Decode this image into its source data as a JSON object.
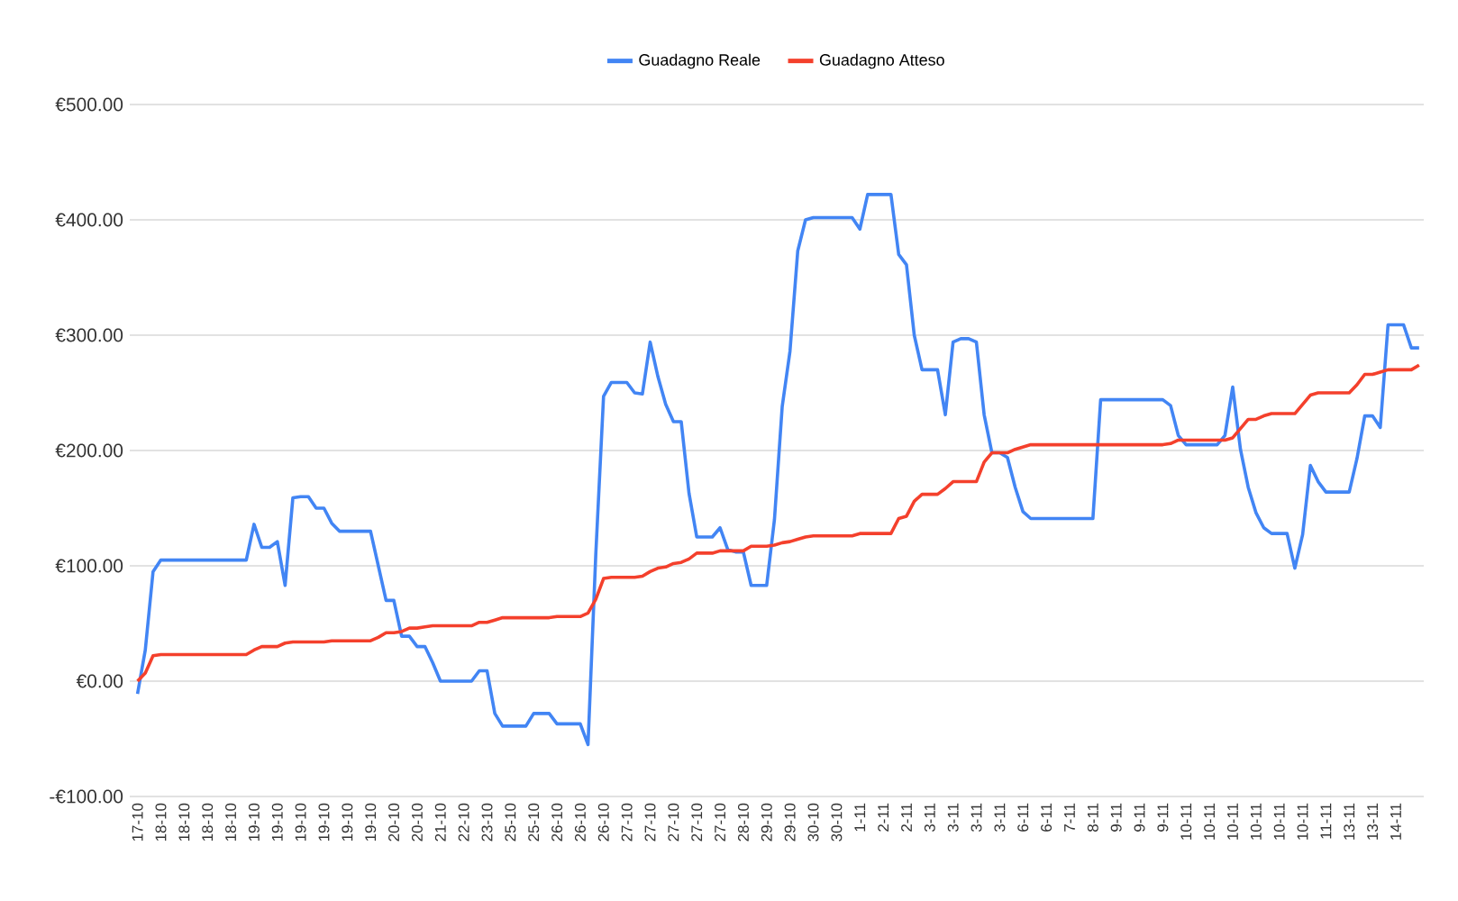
{
  "chart_data": {
    "type": "line",
    "categories": [
      "17-10",
      null,
      null,
      "18-10",
      null,
      null,
      "18-10",
      null,
      null,
      "18-10",
      null,
      null,
      "18-10",
      null,
      null,
      "19-10",
      null,
      null,
      "19-10",
      null,
      null,
      "19-10",
      null,
      null,
      "19-10",
      null,
      null,
      "19-10",
      null,
      null,
      "19-10",
      null,
      null,
      "20-10",
      null,
      null,
      "20-10",
      null,
      null,
      "21-10",
      null,
      null,
      "22-10",
      null,
      null,
      "23-10",
      null,
      null,
      "25-10",
      null,
      null,
      "25-10",
      null,
      null,
      "26-10",
      null,
      null,
      "26-10",
      null,
      null,
      "26-10",
      null,
      null,
      "27-10",
      null,
      null,
      "27-10",
      null,
      null,
      "27-10",
      null,
      null,
      "27-10",
      null,
      null,
      "27-10",
      null,
      null,
      "28-10",
      null,
      null,
      "29-10",
      null,
      null,
      "29-10",
      null,
      null,
      "30-10",
      null,
      null,
      "30-10",
      null,
      null,
      "1-11",
      null,
      null,
      "2-11",
      null,
      null,
      "2-11",
      null,
      null,
      "3-11",
      null,
      null,
      "3-11",
      null,
      null,
      "3-11",
      null,
      null,
      "3-11",
      null,
      null,
      "6-11",
      null,
      null,
      "6-11",
      null,
      null,
      "7-11",
      null,
      null,
      "8-11",
      null,
      null,
      "9-11",
      null,
      null,
      "9-11",
      null,
      null,
      "9-11",
      null,
      null,
      "10-11",
      null,
      null,
      "10-11",
      null,
      null,
      "10-11",
      null,
      null,
      "10-11",
      null,
      null,
      "10-11",
      null,
      null,
      "10-11",
      null,
      null,
      "11-11",
      null,
      null,
      "13-11",
      null,
      null,
      "13-11",
      null,
      null,
      "14-11",
      null,
      null,
      null
    ],
    "ylim": [
      -100,
      500
    ],
    "yticks": [
      {
        "value": -100,
        "label": "-€100.00"
      },
      {
        "value": 0,
        "label": "€0.00"
      },
      {
        "value": 100,
        "label": "€100.00"
      },
      {
        "value": 200,
        "label": "€200.00"
      },
      {
        "value": 300,
        "label": "€300.00"
      },
      {
        "value": 400,
        "label": "€400.00"
      },
      {
        "value": 500,
        "label": "€500.00"
      }
    ],
    "grid": "y",
    "legend": "top",
    "series": [
      {
        "name": "Guadagno Reale",
        "color": "#4285f4",
        "values": [
          -11,
          27,
          95,
          105,
          105,
          105,
          105,
          105,
          105,
          105,
          105,
          105,
          105,
          105,
          105,
          136,
          116,
          116,
          121,
          83,
          159,
          160,
          160,
          150,
          150,
          137,
          130,
          130,
          130,
          130,
          130,
          100,
          70,
          70,
          39,
          39,
          30,
          30,
          16,
          0,
          0,
          0,
          0,
          0,
          9,
          9,
          -28,
          -39,
          -39,
          -39,
          -39,
          -28,
          -28,
          -28,
          -37,
          -37,
          -37,
          -37,
          -55,
          110,
          247,
          259,
          259,
          259,
          250,
          249,
          294,
          264,
          240,
          225,
          225,
          163,
          125,
          125,
          125,
          133,
          114,
          112,
          112,
          83,
          83,
          83,
          140,
          238,
          286,
          373,
          400,
          402,
          402,
          402,
          402,
          402,
          402,
          392,
          422,
          422,
          422,
          422,
          370,
          361,
          300,
          270,
          270,
          270,
          231,
          294,
          297,
          297,
          294,
          231,
          198,
          198,
          194,
          168,
          147,
          141,
          141,
          141,
          141,
          141,
          141,
          141,
          141,
          141,
          244,
          244,
          244,
          244,
          244,
          244,
          244,
          244,
          244,
          239,
          213,
          205,
          205,
          205,
          205,
          205,
          213,
          255,
          201,
          168,
          146,
          133,
          128,
          128,
          128,
          98,
          127,
          187,
          173,
          164,
          164,
          164,
          164,
          193,
          230,
          230,
          220,
          309,
          309,
          309,
          289,
          289
        ]
      },
      {
        "name": "Guadagno Atteso",
        "color": "#f4402c",
        "values": [
          0,
          7,
          22,
          23,
          23,
          23,
          23,
          23,
          23,
          23,
          23,
          23,
          23,
          23,
          23,
          27,
          30,
          30,
          30,
          33,
          34,
          34,
          34,
          34,
          34,
          35,
          35,
          35,
          35,
          35,
          35,
          38,
          42,
          42,
          43,
          46,
          46,
          47,
          48,
          48,
          48,
          48,
          48,
          48,
          51,
          51,
          53,
          55,
          55,
          55,
          55,
          55,
          55,
          55,
          56,
          56,
          56,
          56,
          59,
          71,
          89,
          90,
          90,
          90,
          90,
          91,
          95,
          98,
          99,
          102,
          103,
          106,
          111,
          111,
          111,
          113,
          113,
          113,
          113,
          117,
          117,
          117,
          118,
          120,
          121,
          123,
          125,
          126,
          126,
          126,
          126,
          126,
          126,
          128,
          128,
          128,
          128,
          128,
          141,
          143,
          156,
          162,
          162,
          162,
          167,
          173,
          173,
          173,
          173,
          190,
          198,
          198,
          198,
          201,
          203,
          205,
          205,
          205,
          205,
          205,
          205,
          205,
          205,
          205,
          205,
          205,
          205,
          205,
          205,
          205,
          205,
          205,
          205,
          206,
          209,
          209,
          209,
          209,
          209,
          209,
          209,
          211,
          219,
          227,
          227,
          230,
          232,
          232,
          232,
          232,
          240,
          248,
          250,
          250,
          250,
          250,
          250,
          257,
          266,
          266,
          268,
          270,
          270,
          270,
          270,
          274
        ]
      }
    ]
  }
}
